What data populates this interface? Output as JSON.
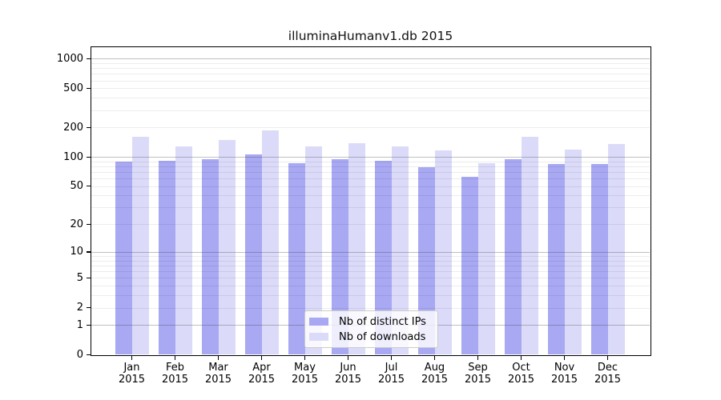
{
  "figure": {
    "background": "#ffffff"
  },
  "chart_data": {
    "type": "bar",
    "title": "illuminaHumanv1.db 2015",
    "categories": [
      "Jan",
      "Feb",
      "Mar",
      "Apr",
      "May",
      "Jun",
      "Jul",
      "Aug",
      "Sep",
      "Oct",
      "Nov",
      "Dec"
    ],
    "category_year": "2015",
    "series": [
      {
        "name": "Nb of distinct IPs",
        "color": "#a8a8f3",
        "values": [
          90,
          92,
          94,
          106,
          86,
          94,
          91,
          78,
          63,
          94,
          85,
          84
        ]
      },
      {
        "name": "Nb of downloads",
        "color": "#dbdbf9",
        "values": [
          160,
          127,
          150,
          188,
          127,
          138,
          128,
          116,
          86,
          159,
          119,
          136
        ]
      }
    ],
    "yscale": "log1p",
    "ylim": [
      0,
      1292
    ],
    "y_ticks": [
      1000,
      500,
      200,
      100,
      50,
      20,
      10,
      5,
      2,
      1,
      0
    ],
    "y_major_gridlines": [
      1,
      10,
      100,
      1000
    ],
    "y_minor_gridlines": [
      2,
      3,
      4,
      5,
      6,
      7,
      8,
      9,
      20,
      30,
      40,
      50,
      60,
      70,
      80,
      90,
      200,
      300,
      400,
      500,
      600,
      700,
      800,
      900
    ],
    "grid": true,
    "legend_position": "lower center inside",
    "colors": {
      "spine": "#000000",
      "major_grid": "#bdbdbd",
      "minor_grid": "#ececec",
      "legend_border": "#cbcbcb",
      "legend_background": "#ffffff"
    }
  }
}
